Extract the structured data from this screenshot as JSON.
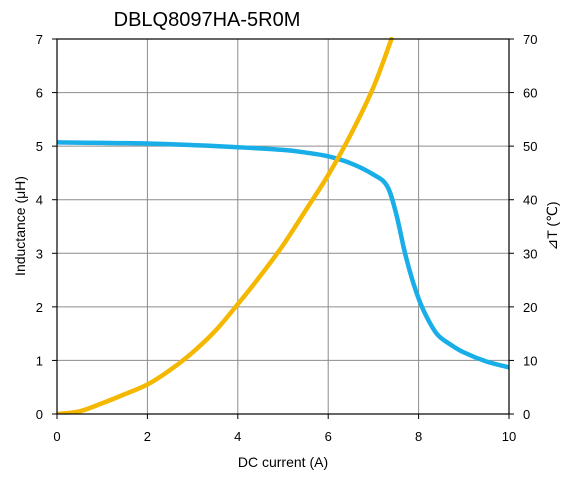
{
  "chart_data": {
    "type": "line",
    "title": "DBLQ8097HA-5R0M",
    "xlabel": "DC current (A)",
    "ylabel": "Inductance (μH)",
    "y2label": "⊿T (℃)",
    "xlim": [
      0,
      10
    ],
    "ylim": [
      0,
      7
    ],
    "y2lim": [
      0,
      70
    ],
    "grid": true,
    "x_ticks": [
      "0",
      "2",
      "4",
      "6",
      "8",
      "10"
    ],
    "y_ticks": [
      "0",
      "1",
      "2",
      "3",
      "4",
      "5",
      "6",
      "7"
    ],
    "y2_ticks": [
      "0",
      "10",
      "20",
      "30",
      "40",
      "50",
      "60",
      "70"
    ],
    "series": [
      {
        "axis": "left",
        "color": "#1AAEE8",
        "x": [
          0,
          1,
          2,
          3,
          4,
          5,
          5.5,
          6,
          6.5,
          7,
          7.3,
          7.5,
          7.7,
          7.9,
          8.1,
          8.4,
          8.7,
          9.0,
          9.5,
          10
        ],
        "y": [
          5.07,
          5.06,
          5.05,
          5.02,
          4.98,
          4.93,
          4.88,
          4.81,
          4.68,
          4.47,
          4.26,
          3.75,
          3.0,
          2.4,
          1.95,
          1.5,
          1.3,
          1.15,
          0.98,
          0.87
        ]
      },
      {
        "axis": "right",
        "color": "#F5B800",
        "x": [
          0,
          0.5,
          1,
          1.5,
          2,
          2.5,
          3,
          3.5,
          4,
          4.5,
          5,
          5.5,
          6,
          6.5,
          7,
          7.4
        ],
        "y": [
          0,
          0.5,
          2,
          3.7,
          5.5,
          8.2,
          11.5,
          15.5,
          20.5,
          25.8,
          31.5,
          38,
          44.6,
          52.2,
          61,
          70
        ]
      }
    ]
  }
}
